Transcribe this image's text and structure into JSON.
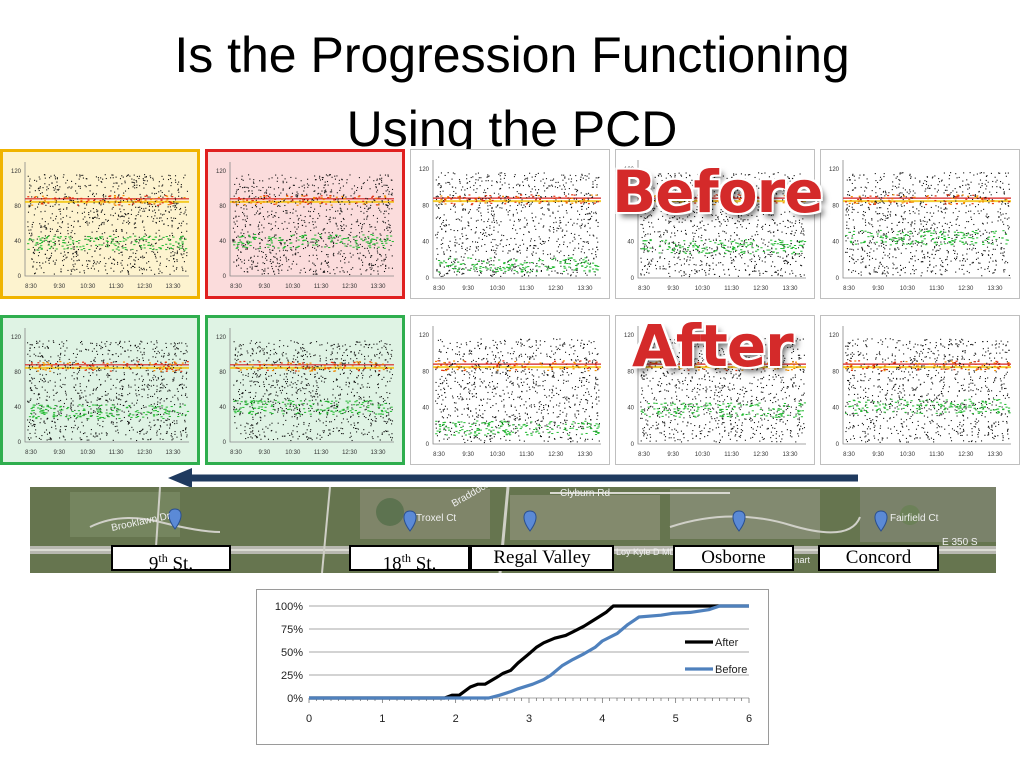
{
  "title": {
    "line1": "Is the Progression Functioning",
    "line2": "Using the PCD"
  },
  "overlays": {
    "before": "Before",
    "after": "After"
  },
  "pcd_grid": {
    "y_ticks": [
      "120",
      "80",
      "40",
      "0"
    ],
    "x_ticks": [
      "8:30",
      "9:30",
      "10:30",
      "11:30",
      "12:30",
      "13:30"
    ],
    "highlight_colors": {
      "yellow": "#fdf3cf",
      "yellow_border": "#f0b400",
      "red": "#fbdcdc",
      "red_border": "#e02020",
      "green": "#dff3e4",
      "green_border": "#2fae4e"
    }
  },
  "map": {
    "direction_arrow": "leftward",
    "labels": {
      "s9": {
        "base": "9",
        "sup": "th",
        "rest": " St."
      },
      "s18": {
        "base": "18",
        "sup": "th",
        "rest": " St."
      },
      "regal": "Regal Valley",
      "osborne": "Osborne",
      "concord": "Concord"
    },
    "background_text": [
      "Brooklawn Dr",
      "Troxel Ct",
      "Braddock Dr",
      "Clyburn Rd",
      "Fairfield Ct",
      "E 350 S",
      "Loy Kyle D MD",
      "mart"
    ]
  },
  "chart_data": {
    "type": "line",
    "x_ticks": [
      "0",
      "1",
      "2",
      "3",
      "4",
      "5",
      "6"
    ],
    "y_ticks": [
      "0%",
      "25%",
      "50%",
      "75%",
      "100%"
    ],
    "xlim": [
      0,
      6
    ],
    "ylim": [
      0,
      100
    ],
    "legend_position": "right",
    "series": [
      {
        "name": "After",
        "color": "#000000",
        "x": [
          0,
          1.85,
          1.95,
          2.05,
          2.2,
          2.3,
          2.4,
          2.55,
          2.65,
          2.75,
          2.85,
          3.0,
          3.1,
          3.2,
          3.35,
          3.5,
          3.6,
          3.75,
          3.85,
          3.95,
          4.05,
          4.15,
          6.0
        ],
        "y": [
          0,
          0,
          3,
          3,
          12,
          15,
          15,
          22,
          27,
          30,
          38,
          48,
          55,
          60,
          65,
          68,
          72,
          78,
          83,
          88,
          93,
          100,
          100
        ]
      },
      {
        "name": "Before",
        "color": "#4f81bd",
        "x": [
          0,
          2.45,
          2.6,
          2.75,
          2.85,
          3.05,
          3.2,
          3.3,
          3.45,
          3.6,
          3.75,
          3.9,
          4.0,
          4.2,
          4.35,
          4.5,
          4.8,
          4.95,
          5.2,
          5.45,
          5.6,
          6.0
        ],
        "y": [
          0,
          0,
          3,
          7,
          10,
          15,
          20,
          25,
          35,
          42,
          48,
          55,
          62,
          70,
          80,
          88,
          90,
          92,
          93,
          96,
          100,
          100
        ]
      }
    ]
  }
}
